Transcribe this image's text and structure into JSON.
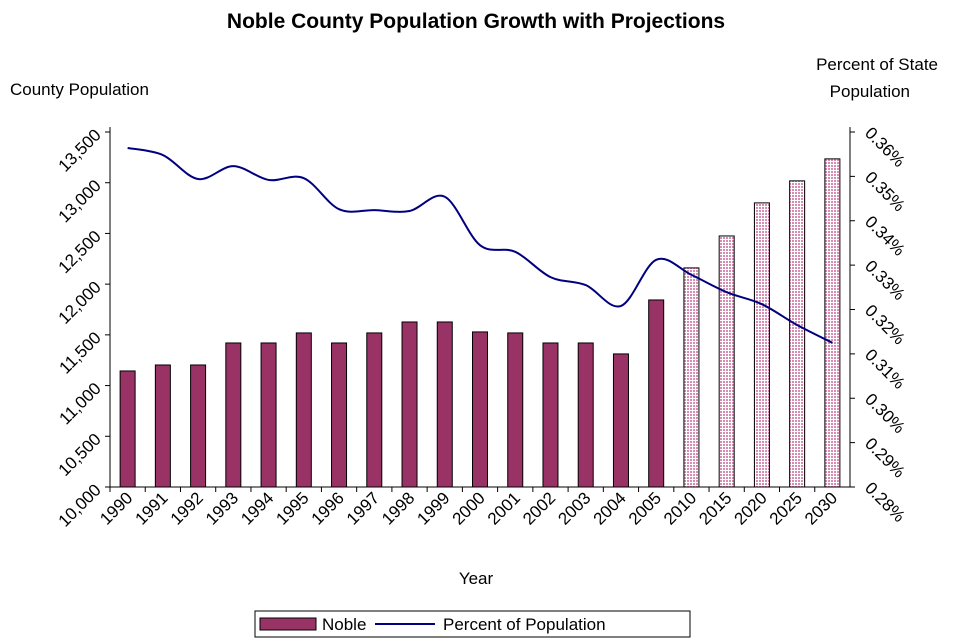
{
  "chart_data": {
    "type": "bar_line",
    "title": "Noble County Population Growth with Projections",
    "ylabel": "County Population",
    "y2label": [
      "Percent of State",
      "Population"
    ],
    "xlabel": "Year",
    "categories": [
      "1990",
      "1991",
      "1992",
      "1993",
      "1994",
      "1995",
      "1996",
      "1997",
      "1998",
      "1999",
      "2000",
      "2001",
      "2002",
      "2003",
      "2004",
      "2005",
      "2010",
      "2015",
      "2020",
      "2025",
      "2030"
    ],
    "series": [
      {
        "name": "Noble",
        "type": "bar",
        "color": "#993366",
        "colors": [
          "#993366",
          "#993366",
          "#993366",
          "#993366",
          "#993366",
          "#993366",
          "#993366",
          "#993366",
          "#993366",
          "#993366",
          "#993366",
          "#993366",
          "#993366",
          "#993366",
          "#993366",
          "#993366",
          "#f2c6dc",
          "#f2c6dc",
          "#f2c6dc",
          "#f2c6dc",
          "#f2c6dc"
        ],
        "values": [
          11144,
          11203,
          11203,
          11420,
          11420,
          11519,
          11420,
          11519,
          11627,
          11627,
          11529,
          11519,
          11420,
          11420,
          11312,
          11844,
          12160,
          12475,
          12801,
          13018,
          13235
        ]
      },
      {
        "name": "Percent of Population",
        "type": "line",
        "axis": "y2",
        "color": "#000080",
        "values": [
          0.3564,
          0.3548,
          0.3494,
          0.3523,
          0.3492,
          0.3496,
          0.3426,
          0.3424,
          0.3422,
          0.3454,
          0.3345,
          0.333,
          0.3273,
          0.3255,
          0.3208,
          0.3312,
          0.3278,
          0.3239,
          0.3212,
          0.3165,
          0.3125
        ]
      }
    ],
    "ylim": [
      10000,
      13500
    ],
    "yticks": [
      {
        "value": 10000,
        "label": "10,000"
      },
      {
        "value": 10500,
        "label": "10,500"
      },
      {
        "value": 11000,
        "label": "11,000"
      },
      {
        "value": 11500,
        "label": "11,500"
      },
      {
        "value": 12000,
        "label": "12,000"
      },
      {
        "value": 12500,
        "label": "12,500"
      },
      {
        "value": 13000,
        "label": "13,000"
      },
      {
        "value": 13500,
        "label": "13,500"
      }
    ],
    "y2lim": [
      0.28,
      0.36
    ],
    "y2ticks": [
      {
        "value": 0.28,
        "label": "0.28%"
      },
      {
        "value": 0.29,
        "label": "0.29%"
      },
      {
        "value": 0.3,
        "label": "0.30%"
      },
      {
        "value": 0.31,
        "label": "0.31%"
      },
      {
        "value": 0.32,
        "label": "0.32%"
      },
      {
        "value": 0.33,
        "label": "0.33%"
      },
      {
        "value": 0.34,
        "label": "0.34%"
      },
      {
        "value": 0.35,
        "label": "0.35%"
      },
      {
        "value": 0.36,
        "label": "0.36%"
      }
    ],
    "legend": "bottom"
  }
}
